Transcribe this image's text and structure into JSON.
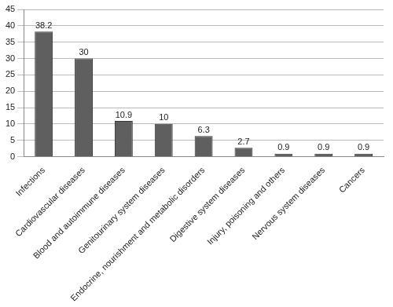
{
  "chart_data": {
    "type": "bar",
    "categories": [
      "Infections",
      "Cardiovascular diseases",
      "Blood and autoimmune diseases",
      "Genitourinary system diseases",
      "Endocrine, nourishment and metabolic disorders",
      "Digestive system diseases",
      "Injury, poisoning and others",
      "Nervous system diseases",
      "Cancers"
    ],
    "values": [
      38.2,
      30,
      10.9,
      10,
      6.3,
      2.7,
      0.9,
      0.9,
      0.9
    ],
    "color": "#5f5f5f",
    "ylim": [
      0,
      45
    ],
    "yticks": [
      0,
      5,
      10,
      15,
      20,
      25,
      30,
      35,
      40,
      45
    ],
    "grid": true,
    "data_labels": true
  }
}
